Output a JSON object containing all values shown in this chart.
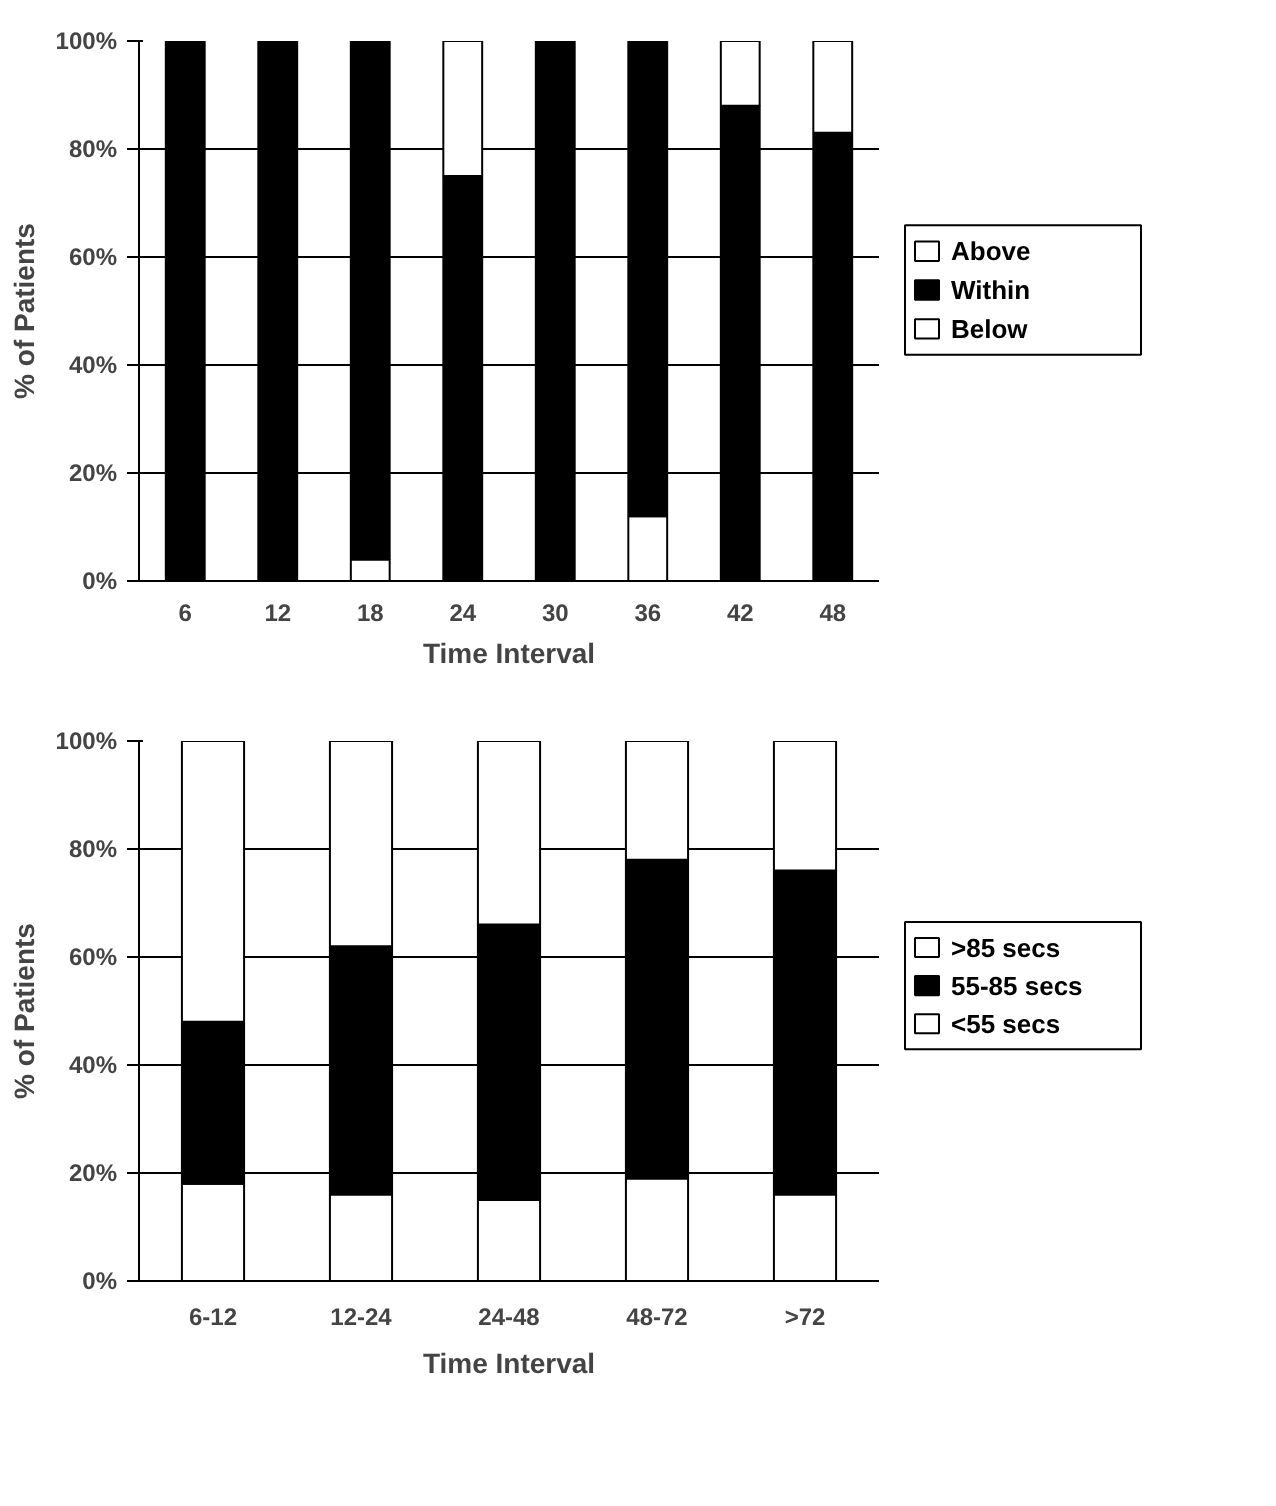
{
  "chart_data": [
    {
      "type": "bar",
      "stacked": true,
      "ylabel": "% of Patients",
      "xlabel": "Time Interval",
      "categories": [
        "6",
        "12",
        "18",
        "24",
        "30",
        "36",
        "42",
        "48"
      ],
      "series": [
        {
          "name": "Below",
          "color": "#ffffff",
          "values": [
            0,
            0,
            4,
            0,
            0,
            12,
            0,
            0
          ]
        },
        {
          "name": "Within",
          "color": "#000000",
          "values": [
            100,
            100,
            96,
            75,
            100,
            88,
            88,
            83
          ]
        },
        {
          "name": "Above",
          "color": "#ffffff",
          "values": [
            0,
            0,
            0,
            25,
            0,
            0,
            12,
            17
          ]
        }
      ],
      "ylim": [
        0,
        100
      ],
      "yticks": [
        {
          "value": 0,
          "label": "0%"
        },
        {
          "value": 20,
          "label": "20%"
        },
        {
          "value": 40,
          "label": "40%"
        },
        {
          "value": 60,
          "label": "60%"
        },
        {
          "value": 80,
          "label": "80%"
        },
        {
          "value": 100,
          "label": "100%"
        }
      ],
      "grid": "y",
      "legend": "right"
    },
    {
      "type": "bar",
      "stacked": true,
      "ylabel": "% of Patients",
      "xlabel": "Time Interval",
      "categories": [
        "6-12",
        "12-24",
        "24-48",
        "48-72",
        ">72"
      ],
      "series": [
        {
          "name": "<55 secs",
          "color": "#ffffff",
          "values": [
            18,
            16,
            15,
            19,
            16
          ]
        },
        {
          "name": "55-85 secs",
          "color": "#000000",
          "values": [
            30,
            46,
            51,
            59,
            60
          ]
        },
        {
          "name": ">85 secs",
          "color": "#ffffff",
          "values": [
            52,
            38,
            34,
            22,
            24
          ]
        }
      ],
      "ylim": [
        0,
        100
      ],
      "yticks": [
        {
          "value": 0,
          "label": "0%"
        },
        {
          "value": 20,
          "label": "20%"
        },
        {
          "value": 40,
          "label": "40%"
        },
        {
          "value": 60,
          "label": "60%"
        },
        {
          "value": 80,
          "label": "80%"
        },
        {
          "value": 100,
          "label": "100%"
        }
      ],
      "grid": "y",
      "legend": "right"
    }
  ]
}
